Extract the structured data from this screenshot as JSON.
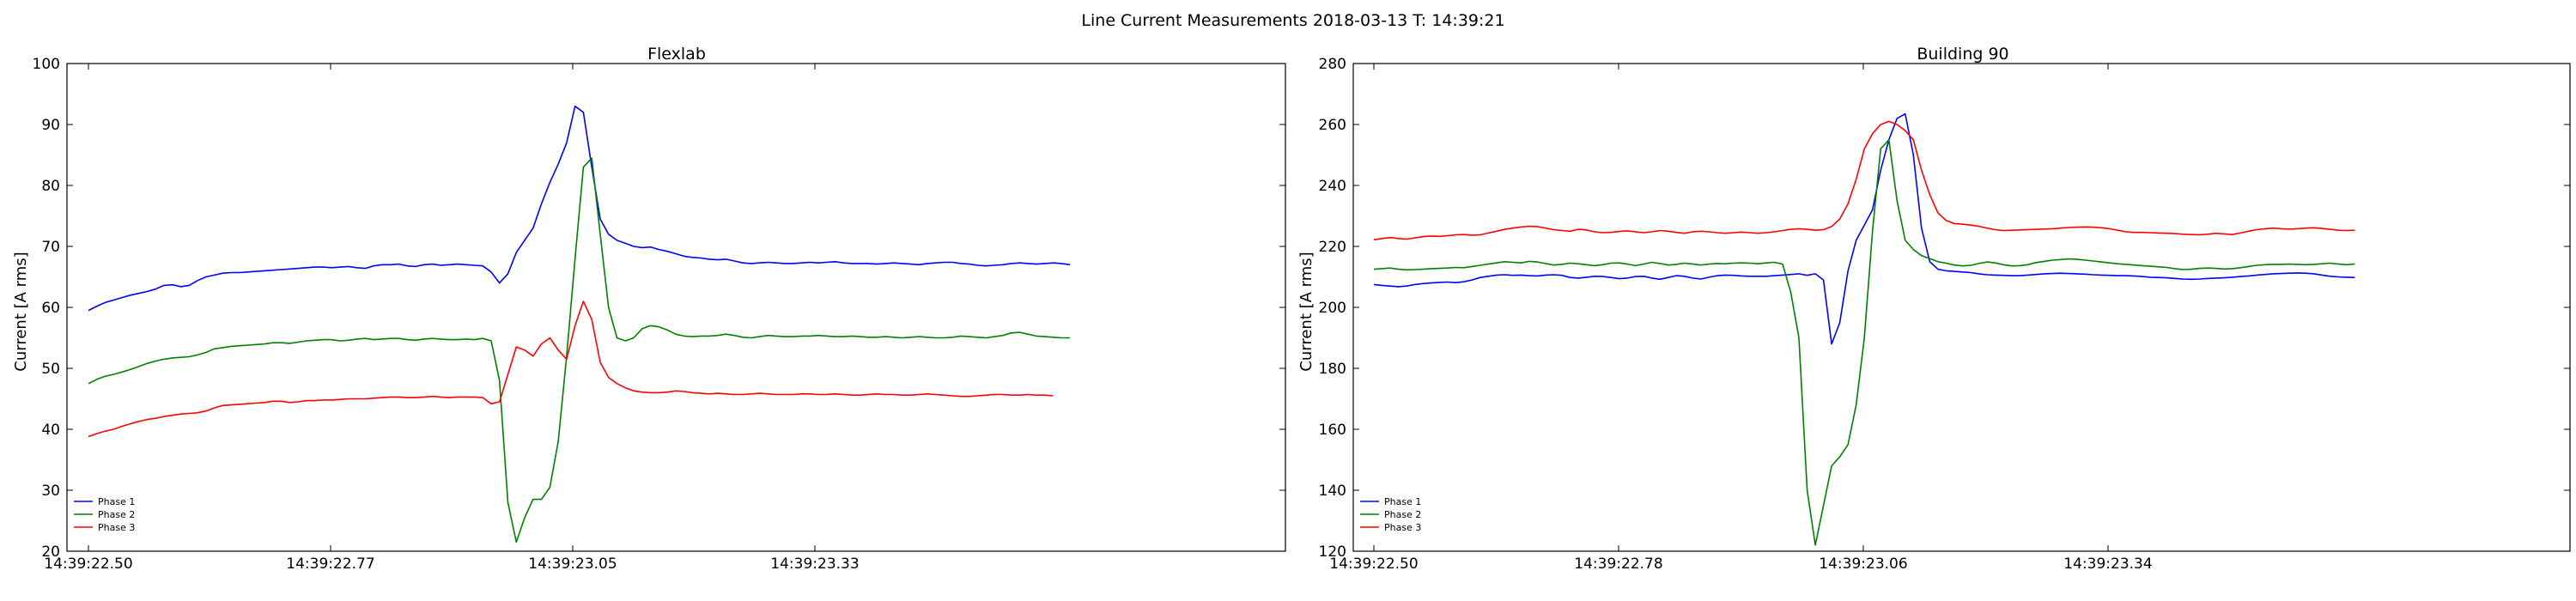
{
  "figure": {
    "suptitle": "Line Current Measurements 2018-03-13 T: 14:39:21"
  },
  "chart_data": [
    {
      "type": "line",
      "title": "Flexlab",
      "xlabel": "",
      "ylabel": "Current [A rms]",
      "ylim": [
        20,
        100
      ],
      "yticks": [
        20,
        30,
        40,
        50,
        60,
        70,
        80,
        90,
        100
      ],
      "xtick_labels": [
        "14:39:22.50",
        "14:39:22.77",
        "14:39:23.05",
        "14:39:23.33"
      ],
      "grid": false,
      "legend_position": "lower-left",
      "series": [
        {
          "name": "Phase 1",
          "color": "#0000ff",
          "values": [
            59.5,
            60.2,
            60.8,
            61.2,
            61.6,
            62,
            62.3,
            62.6,
            63,
            63.6,
            63.7,
            63.4,
            63.6,
            64.4,
            65,
            65.3,
            65.6,
            65.7,
            65.7,
            65.8,
            65.9,
            66,
            66.1,
            66.2,
            66.3,
            66.4,
            66.5,
            66.6,
            66.6,
            66.5,
            66.6,
            66.7,
            66.5,
            66.4,
            66.8,
            67,
            67,
            67.1,
            66.8,
            66.7,
            67,
            67.1,
            66.9,
            67,
            67.1,
            67,
            66.9,
            66.8,
            65.8,
            64,
            65.5,
            69,
            71,
            73,
            77,
            80.5,
            83.5,
            87,
            93,
            92,
            83,
            74.5,
            72,
            71,
            70.5,
            70,
            69.8,
            69.9,
            69.5,
            69.2,
            68.8,
            68.4,
            68.2,
            68.1,
            67.9,
            67.8,
            67.9,
            67.6,
            67.3,
            67.2,
            67.3,
            67.4,
            67.3,
            67.2,
            67.2,
            67.3,
            67.4,
            67.3,
            67.4,
            67.5,
            67.3,
            67.2,
            67.2,
            67.2,
            67.1,
            67.2,
            67.3,
            67.2,
            67.1,
            67,
            67.2,
            67.3,
            67.4,
            67.4,
            67.2,
            67.1,
            66.9,
            66.8,
            66.9,
            67,
            67.2,
            67.3,
            67.2,
            67.1,
            67.2,
            67.3,
            67.2,
            67
          ]
        },
        {
          "name": "Phase 2",
          "color": "#008000",
          "values": [
            47.5,
            48.2,
            48.7,
            49,
            49.4,
            49.8,
            50.3,
            50.8,
            51.2,
            51.5,
            51.7,
            51.8,
            51.9,
            52.2,
            52.6,
            53.2,
            53.4,
            53.6,
            53.7,
            53.8,
            53.9,
            54,
            54.2,
            54.2,
            54.1,
            54.3,
            54.5,
            54.6,
            54.7,
            54.7,
            54.5,
            54.6,
            54.8,
            54.9,
            54.7,
            54.8,
            54.9,
            54.9,
            54.7,
            54.6,
            54.8,
            54.9,
            54.8,
            54.7,
            54.7,
            54.8,
            54.7,
            54.9,
            54.5,
            48,
            28,
            21.5,
            25.5,
            28.5,
            28.5,
            30.5,
            38,
            52,
            68,
            83,
            84.5,
            72,
            60,
            55,
            54.5,
            55,
            56.5,
            57,
            56.8,
            56.3,
            55.6,
            55.3,
            55.2,
            55.3,
            55.3,
            55.4,
            55.6,
            55.4,
            55.1,
            55,
            55.2,
            55.4,
            55.3,
            55.2,
            55.2,
            55.3,
            55.3,
            55.4,
            55.3,
            55.2,
            55.2,
            55.3,
            55.2,
            55.1,
            55.1,
            55.2,
            55.1,
            55,
            55.1,
            55.2,
            55.1,
            55,
            55,
            55.1,
            55.3,
            55.2,
            55.1,
            55,
            55.2,
            55.4,
            55.8,
            55.9,
            55.6,
            55.3,
            55.2,
            55.1,
            55,
            55
          ]
        },
        {
          "name": "Phase 3",
          "color": "#ff0000",
          "values": [
            38.8,
            39.3,
            39.7,
            40,
            40.5,
            40.9,
            41.3,
            41.6,
            41.8,
            42.1,
            42.3,
            42.5,
            42.6,
            42.7,
            43,
            43.5,
            43.9,
            44,
            44.1,
            44.2,
            44.3,
            44.4,
            44.6,
            44.6,
            44.4,
            44.5,
            44.7,
            44.7,
            44.8,
            44.8,
            44.9,
            45,
            45,
            45,
            45.1,
            45.2,
            45.3,
            45.3,
            45.2,
            45.2,
            45.3,
            45.4,
            45.3,
            45.2,
            45.3,
            45.3,
            45.3,
            45.2,
            44.2,
            44.5,
            49,
            53.5,
            53,
            52,
            54,
            55,
            53,
            51.5,
            57,
            61,
            58,
            51,
            48.5,
            47.5,
            46.8,
            46.3,
            46.1,
            46,
            46,
            46.1,
            46.3,
            46.2,
            46,
            45.9,
            45.8,
            45.9,
            45.8,
            45.7,
            45.7,
            45.8,
            45.9,
            45.8,
            45.7,
            45.7,
            45.7,
            45.8,
            45.8,
            45.7,
            45.7,
            45.8,
            45.7,
            45.6,
            45.6,
            45.7,
            45.8,
            45.7,
            45.7,
            45.6,
            45.6,
            45.7,
            45.8,
            45.7,
            45.6,
            45.5,
            45.4,
            45.4,
            45.5,
            45.6,
            45.7,
            45.7,
            45.6,
            45.6,
            45.7,
            45.6,
            45.6,
            45.5
          ]
        }
      ]
    },
    {
      "type": "line",
      "title": "Building 90",
      "xlabel": "",
      "ylabel": "Current [A rms]",
      "ylim": [
        120,
        280
      ],
      "yticks": [
        120,
        140,
        160,
        180,
        200,
        220,
        240,
        260,
        280
      ],
      "xtick_labels": [
        "14:39:22.50",
        "14:39:22.78",
        "14:39:23.06",
        "14:39:23.34"
      ],
      "grid": false,
      "legend_position": "lower-left",
      "series": [
        {
          "name": "Phase 1",
          "color": "#0000ff",
          "values": [
            207.5,
            207.2,
            207,
            206.8,
            207,
            207.5,
            207.8,
            208,
            208.2,
            208.3,
            208.1,
            208.4,
            209,
            209.8,
            210.2,
            210.6,
            210.7,
            210.5,
            210.6,
            210.4,
            210.3,
            210.6,
            210.7,
            210.5,
            209.8,
            209.6,
            209.9,
            210.2,
            210.1,
            209.8,
            209.4,
            209.6,
            210.1,
            210.2,
            209.6,
            209.2,
            209.8,
            210.4,
            210.2,
            209.6,
            209.3,
            209.9,
            210.4,
            210.6,
            210.5,
            210.3,
            210.2,
            210.2,
            210.2,
            210.4,
            210.6,
            210.8,
            211,
            210.5,
            211,
            209,
            188,
            195,
            212,
            222,
            227,
            232,
            245,
            255,
            262,
            263.5,
            250,
            226,
            215,
            212.5,
            212,
            211.8,
            211.6,
            211.4,
            211,
            210.7,
            210.6,
            210.5,
            210.4,
            210.4,
            210.6,
            210.8,
            211,
            211.1,
            211.2,
            211.1,
            211,
            210.9,
            210.7,
            210.6,
            210.5,
            210.4,
            210.4,
            210.3,
            210.1,
            209.9,
            209.8,
            209.7,
            209.5,
            209.3,
            209.2,
            209.3,
            209.5,
            209.6,
            209.7,
            209.9,
            210.1,
            210.3,
            210.6,
            210.8,
            211,
            211.1,
            211.2,
            211.3,
            211.2,
            211,
            210.6,
            210.2,
            210,
            209.9,
            209.8
          ]
        },
        {
          "name": "Phase 2",
          "color": "#008000",
          "values": [
            212.5,
            212.7,
            212.9,
            212.5,
            212.3,
            212.4,
            212.5,
            212.7,
            212.8,
            212.9,
            213.1,
            213,
            213.4,
            213.8,
            214.2,
            214.6,
            215,
            214.8,
            214.6,
            215.1,
            214.9,
            214.4,
            213.9,
            214.1,
            214.5,
            214.3,
            214,
            213.7,
            214,
            214.5,
            214.6,
            214.2,
            213.7,
            214.2,
            214.8,
            214.4,
            213.9,
            214.1,
            214.5,
            214.2,
            213.9,
            214.2,
            214.4,
            214.3,
            214.5,
            214.6,
            214.5,
            214.3,
            214.6,
            214.8,
            214.2,
            205,
            190,
            140,
            122,
            135,
            148,
            151,
            155,
            168,
            190,
            225,
            252,
            255,
            235,
            222,
            219,
            217,
            216,
            215,
            214.5,
            213.9,
            213.6,
            213.8,
            214.4,
            214.9,
            214.6,
            214,
            213.6,
            213.7,
            214,
            214.7,
            215.1,
            215.5,
            215.7,
            215.9,
            215.8,
            215.5,
            215.2,
            214.9,
            214.6,
            214.3,
            214.1,
            213.9,
            213.7,
            213.5,
            213.3,
            213.1,
            212.7,
            212.4,
            212.5,
            212.8,
            212.9,
            212.8,
            212.6,
            212.7,
            213,
            213.4,
            213.8,
            214,
            214.1,
            214.1,
            214.2,
            214.1,
            214,
            214.1,
            214.3,
            214.5,
            214.2,
            214,
            214.2
          ]
        },
        {
          "name": "Phase 3",
          "color": "#ff0000",
          "values": [
            222.2,
            222.6,
            222.9,
            222.6,
            222.4,
            222.8,
            223.2,
            223.4,
            223.3,
            223.5,
            223.8,
            223.9,
            223.7,
            223.8,
            224.4,
            225,
            225.6,
            226,
            226.4,
            226.6,
            226.5,
            226,
            225.5,
            225.2,
            225,
            225.6,
            225.4,
            224.8,
            224.5,
            224.6,
            224.9,
            225.1,
            224.8,
            224.5,
            224.8,
            225.2,
            225,
            224.6,
            224.3,
            224.8,
            225,
            224.8,
            224.5,
            224.3,
            224.5,
            224.7,
            224.5,
            224.3,
            224.5,
            224.8,
            225.2,
            225.6,
            225.8,
            225.6,
            225.3,
            225.5,
            226.5,
            229,
            234,
            242,
            252,
            257,
            260,
            261,
            260,
            258,
            255,
            245,
            237,
            231,
            228.5,
            227.5,
            227.3,
            227,
            226.6,
            226,
            225.5,
            225.2,
            225.3,
            225.4,
            225.5,
            225.6,
            225.7,
            225.8,
            226,
            226.2,
            226.3,
            226.4,
            226.3,
            226.1,
            225.8,
            225.3,
            224.8,
            224.6,
            224.6,
            224.5,
            224.4,
            224.3,
            224.2,
            224,
            223.9,
            223.8,
            224,
            224.3,
            224.1,
            223.9,
            224.4,
            225,
            225.5,
            225.8,
            226,
            225.8,
            225.7,
            225.8,
            226,
            226.1,
            225.9,
            225.6,
            225.3,
            225.2,
            225.3
          ]
        }
      ]
    }
  ]
}
